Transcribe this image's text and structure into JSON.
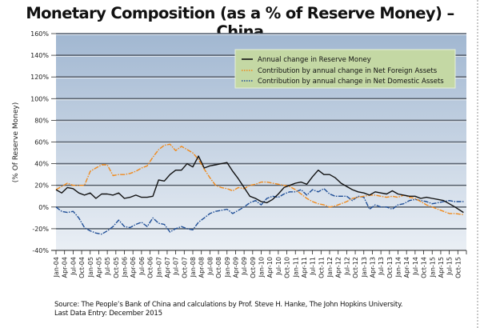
{
  "chart_data": {
    "type": "line",
    "title": "Monetary Composition (as a % of Reserve Money) – China",
    "ylabel": "(% Of Reserve Money)",
    "xlabel": "",
    "ylim": [
      -40,
      160
    ],
    "yticks": [
      160,
      140,
      120,
      100,
      80,
      60,
      40,
      20,
      0,
      -20,
      -40
    ],
    "ytick_labels": [
      "160%",
      "140%",
      "120%",
      "100%",
      "80%",
      "60%",
      "40%",
      "20%",
      "0%",
      "-20%",
      "-40%"
    ],
    "grid": true,
    "legend_position": "top-right",
    "x_start": "Jan-04",
    "x_end": "Dec-15",
    "x_tick_labels": [
      "Jan-04",
      "Apr-04",
      "Jul-04",
      "Oct-04",
      "Jan-05",
      "Apr-05",
      "Jul-05",
      "Oct-05",
      "Jan-06",
      "Apr-06",
      "Jul-06",
      "Oct-06",
      "Jan-07",
      "Apr-07",
      "Jul-07",
      "Oct-07",
      "Jan-08",
      "Apr-08",
      "Jul-08",
      "Oct-08",
      "Jan-09",
      "Apr-09",
      "Jul-09",
      "Oct-09",
      "Jan-10",
      "Apr-10",
      "Jul-10",
      "Oct-10",
      "Jan-11",
      "Apr-11",
      "Jul-11",
      "Oct-11",
      "Jan-12",
      "Apr-12",
      "Jul-12",
      "Oct-12",
      "Jan-13",
      "Apr-13",
      "Jul-13",
      "Oct-13",
      "Jan-14",
      "Apr-14",
      "Jul-14",
      "Oct-14",
      "Jan-15",
      "Apr-15",
      "Jul-15",
      "Oct-15"
    ],
    "x_months": [
      0,
      2,
      4,
      6,
      8,
      10,
      12,
      14,
      16,
      18,
      20,
      22,
      24,
      26,
      28,
      30,
      32,
      34,
      36,
      38,
      40,
      42,
      44,
      46,
      48,
      50,
      52,
      54,
      56,
      58,
      60,
      62,
      64,
      66,
      68,
      70,
      72,
      74,
      76,
      78,
      80,
      82,
      84,
      86,
      88,
      90,
      92,
      94,
      96,
      98,
      100,
      102,
      104,
      106,
      108,
      110,
      112,
      114,
      116,
      118,
      120,
      122,
      124,
      126,
      128,
      130,
      132,
      134,
      136,
      138,
      140,
      143
    ],
    "series": [
      {
        "name": "Annual change in Reserve Money",
        "color": "#111111",
        "style": "solid",
        "values": [
          16,
          13,
          18,
          17,
          13,
          11,
          13,
          8,
          12,
          12,
          11,
          13,
          8,
          9,
          11,
          9,
          9,
          10,
          25,
          24,
          30,
          34,
          34,
          40,
          37,
          47,
          36,
          38,
          39,
          40,
          41,
          33,
          26,
          18,
          10,
          8,
          5,
          4,
          7,
          12,
          18,
          20,
          22,
          23,
          21,
          28,
          34,
          30,
          30,
          27,
          22,
          19,
          16,
          14,
          13,
          11,
          14,
          13,
          12,
          15,
          12,
          11,
          10,
          10,
          8,
          9,
          8,
          7,
          6,
          3,
          0,
          -5
        ]
      },
      {
        "name": "Contribution by annual change in Net Foreign Assets",
        "color": "#f08a1c",
        "style": "dotted",
        "values": [
          16,
          19,
          22,
          20,
          20,
          20,
          33,
          36,
          39,
          39,
          29,
          30,
          30,
          31,
          33,
          36,
          38,
          46,
          53,
          57,
          58,
          52,
          56,
          53,
          50,
          44,
          35,
          27,
          20,
          18,
          17,
          15,
          18,
          17,
          20,
          21,
          23,
          23,
          22,
          21,
          20,
          19,
          16,
          12,
          8,
          5,
          3,
          2,
          0,
          1,
          3,
          5,
          8,
          9,
          10,
          11,
          11,
          10,
          9,
          10,
          9,
          11,
          9,
          8,
          5,
          2,
          0,
          -2,
          -4,
          -6,
          -6,
          -7
        ]
      },
      {
        "name": "Contribution by annual change in Net Domestic Assets",
        "color": "#1f4e96",
        "style": "dotted",
        "values": [
          0,
          -4,
          -5,
          -4,
          -10,
          -19,
          -22,
          -24,
          -25,
          -22,
          -18,
          -12,
          -18,
          -19,
          -16,
          -14,
          -18,
          -10,
          -15,
          -16,
          -23,
          -20,
          -18,
          -20,
          -21,
          -14,
          -10,
          -6,
          -4,
          -3,
          -2,
          -6,
          -3,
          0,
          4,
          6,
          2,
          8,
          10,
          9,
          12,
          14,
          14,
          16,
          11,
          16,
          14,
          17,
          12,
          10,
          10,
          10,
          6,
          10,
          9,
          -2,
          2,
          0,
          0,
          -2,
          2,
          3,
          6,
          7,
          6,
          5,
          3,
          4,
          5,
          6,
          5,
          5
        ]
      }
    ],
    "annotations": []
  },
  "legend": [
    {
      "label": "Annual change in Reserve Money",
      "color": "#111111",
      "style": "solid"
    },
    {
      "label": "Contribution by annual change in Net Foreign Assets",
      "color": "#f08a1c",
      "style": "dotted"
    },
    {
      "label": "Contribution by annual change in Net Domestic Assets",
      "color": "#1f4e96",
      "style": "dotted"
    }
  ],
  "footer": {
    "source": "Source: The People’s Bank of China and calculations by Prof. Steve H. Hanke, The John Hopkins University.",
    "last_entry": "Last Data Entry: December 2015"
  }
}
